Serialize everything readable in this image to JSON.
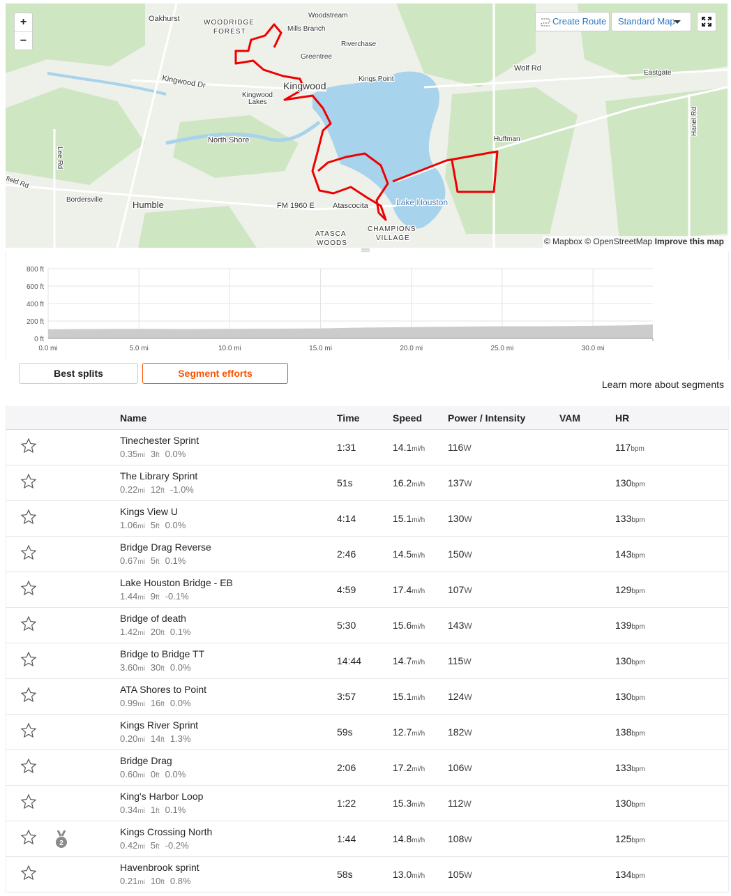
{
  "map": {
    "zoom_in": "+",
    "zoom_out": "−",
    "create_route": "Create Route",
    "map_style": "Standard Map",
    "labels": [
      "Oakhurst",
      "WOODRIDGE",
      "FOREST",
      "Woodstream",
      "Mills Branch",
      "Riverchase",
      "Greentree",
      "Kingwood",
      "Kings Point",
      "Wolf Rd",
      "Eastgate",
      "Kingwood Dr",
      "Kingwood",
      "Lakes",
      "North Shore",
      "Huffman",
      "Lee Rd",
      "Hanel Rd",
      "field Rd",
      "Bordersville",
      "Humble",
      "FM 1960 E",
      "Atascocita",
      "Lake Houston",
      "ATASCA",
      "WOODS",
      "CHAMPIONS",
      "VILLAGE"
    ],
    "attribution": "© Mapbox © OpenStreetMap",
    "improve": "Improve this map"
  },
  "chart_data": {
    "type": "area",
    "x": [
      0,
      2.5,
      5,
      7.5,
      10,
      12.5,
      15,
      17.5,
      20,
      22.5,
      25,
      27.5,
      30,
      32,
      33.3
    ],
    "values": [
      105,
      108,
      110,
      108,
      110,
      112,
      115,
      125,
      130,
      135,
      140,
      140,
      145,
      150,
      160
    ],
    "color": "#cccccc",
    "xlim": [
      0,
      33.3
    ],
    "ylim": [
      0,
      800
    ],
    "xticks": [
      {
        "value": 0,
        "label": "0.0 mi"
      },
      {
        "value": 5,
        "label": "5.0 mi"
      },
      {
        "value": 10,
        "label": "10.0 mi"
      },
      {
        "value": 15,
        "label": "15.0 mi"
      },
      {
        "value": 20,
        "label": "20.0 mi"
      },
      {
        "value": 25,
        "label": "25.0 mi"
      },
      {
        "value": 30,
        "label": "30.0 mi"
      }
    ],
    "yticks": [
      {
        "value": 0,
        "label": "0 ft"
      },
      {
        "value": 200,
        "label": "200 ft"
      },
      {
        "value": 400,
        "label": "400 ft"
      },
      {
        "value": 600,
        "label": "600 ft"
      },
      {
        "value": 800,
        "label": "800 ft"
      }
    ],
    "grid": true
  },
  "tabs": [
    "Best splits",
    "Segment efforts"
  ],
  "learn_more": "Learn more about segments",
  "table": {
    "headers": {
      "name": "Name",
      "time": "Time",
      "speed": "Speed",
      "power": "Power / Intensity",
      "vam": "VAM",
      "hr": "HR"
    },
    "units": {
      "distance": "mi",
      "elevation": "ft",
      "speed": "mi/h",
      "power": "W",
      "hr": "bpm"
    },
    "rows": [
      {
        "name": "Tinechester Sprint",
        "distance": "0.35",
        "elevation": "3",
        "grade": "0.0%",
        "time": "1:31",
        "speed": "14.1",
        "power": "116",
        "hr": "117"
      },
      {
        "name": "The Library Sprint",
        "distance": "0.22",
        "elevation": "12",
        "grade": "-1.0%",
        "time": "51s",
        "speed": "16.2",
        "power": "137",
        "hr": "130"
      },
      {
        "name": "Kings View U",
        "distance": "1.06",
        "elevation": "5",
        "grade": "0.0%",
        "time": "4:14",
        "speed": "15.1",
        "power": "130",
        "hr": "133"
      },
      {
        "name": "Bridge Drag Reverse",
        "distance": "0.67",
        "elevation": "5",
        "grade": "0.1%",
        "time": "2:46",
        "speed": "14.5",
        "power": "150",
        "hr": "143"
      },
      {
        "name": "Lake Houston Bridge - EB",
        "distance": "1.44",
        "elevation": "9",
        "grade": "-0.1%",
        "time": "4:59",
        "speed": "17.4",
        "power": "107",
        "hr": "129"
      },
      {
        "name": "Bridge of death",
        "distance": "1.42",
        "elevation": "20",
        "grade": "0.1%",
        "time": "5:30",
        "speed": "15.6",
        "power": "143",
        "hr": "139"
      },
      {
        "name": "Bridge to Bridge TT",
        "distance": "3.60",
        "elevation": "30",
        "grade": "0.0%",
        "time": "14:44",
        "speed": "14.7",
        "power": "115",
        "hr": "130"
      },
      {
        "name": "ATA Shores to Point",
        "distance": "0.99",
        "elevation": "16",
        "grade": "0.0%",
        "time": "3:57",
        "speed": "15.1",
        "power": "124",
        "hr": "130"
      },
      {
        "name": "Kings River Sprint",
        "distance": "0.20",
        "elevation": "14",
        "grade": "1.3%",
        "time": "59s",
        "speed": "12.7",
        "power": "182",
        "hr": "138"
      },
      {
        "name": "Bridge Drag",
        "distance": "0.60",
        "elevation": "0",
        "grade": "0.0%",
        "time": "2:06",
        "speed": "17.2",
        "power": "106",
        "hr": "133"
      },
      {
        "name": "King's Harbor Loop",
        "distance": "0.34",
        "elevation": "1",
        "grade": "0.1%",
        "time": "1:22",
        "speed": "15.3",
        "power": "112",
        "hr": "130"
      },
      {
        "name": "Kings Crossing North",
        "distance": "0.42",
        "elevation": "5",
        "grade": "-0.2%",
        "time": "1:44",
        "speed": "14.8",
        "power": "108",
        "hr": "125",
        "rank": "2"
      },
      {
        "name": "Havenbrook sprint",
        "distance": "0.21",
        "elevation": "10",
        "grade": "0.8%",
        "time": "58s",
        "speed": "13.0",
        "power": "105",
        "hr": "134"
      }
    ]
  }
}
